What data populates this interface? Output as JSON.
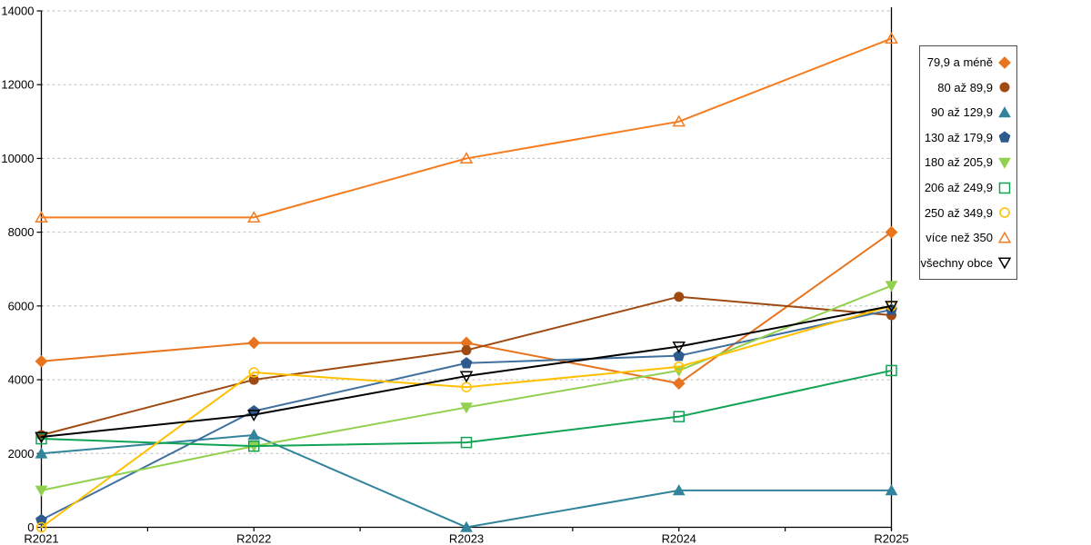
{
  "chart_data": {
    "type": "line",
    "categories": [
      "R2021",
      "R2022",
      "R2023",
      "R2024",
      "R2025"
    ],
    "series": [
      {
        "name": "79,9 a méně",
        "marker": "diamond-filled",
        "color": "#E8741E",
        "values": [
          4500,
          5000,
          5000,
          3900,
          8000
        ]
      },
      {
        "name": "80 až 89,9",
        "marker": "circle-filled",
        "color": "#9E4A10",
        "values": [
          2500,
          4000,
          4800,
          6250,
          5750
        ]
      },
      {
        "name": "90 až 129,9",
        "marker": "triangle-up-filled",
        "color": "#31849B",
        "values": [
          2000,
          2500,
          0,
          1000,
          1000
        ]
      },
      {
        "name": "130 až 179,9",
        "marker": "pentagon-filled",
        "color": "#41709F",
        "marker_color": "#2E5B8F",
        "values": [
          200,
          3150,
          4450,
          4650,
          5900
        ]
      },
      {
        "name": "180 až 205,9",
        "marker": "triangle-down-filled",
        "color": "#92D050",
        "values": [
          1000,
          2200,
          3250,
          4250,
          6550
        ]
      },
      {
        "name": "206 až 249,9",
        "marker": "square-open",
        "color": "#10A354",
        "values": [
          2400,
          2200,
          2300,
          3000,
          4250
        ]
      },
      {
        "name": "250 až 349,9",
        "marker": "circle-open",
        "color": "#FFC000",
        "values": [
          0,
          4200,
          3800,
          4350,
          6000
        ]
      },
      {
        "name": "více než 350",
        "marker": "triangle-up-open",
        "color": "#F57C1F",
        "values": [
          8400,
          8400,
          10000,
          11000,
          13250
        ]
      },
      {
        "name": "všechny obce",
        "marker": "triangle-down-open",
        "color": "#000000",
        "values": [
          2450,
          3050,
          4100,
          4900,
          6000
        ]
      }
    ],
    "title": "",
    "xlabel": "",
    "ylabel": "",
    "ylim": [
      0,
      14000
    ],
    "ytick_step": 2000,
    "grid": "horizontal-dashed",
    "gridline_color": "#BFBFBF",
    "axis_color": "#000000",
    "legend_position": "right"
  }
}
